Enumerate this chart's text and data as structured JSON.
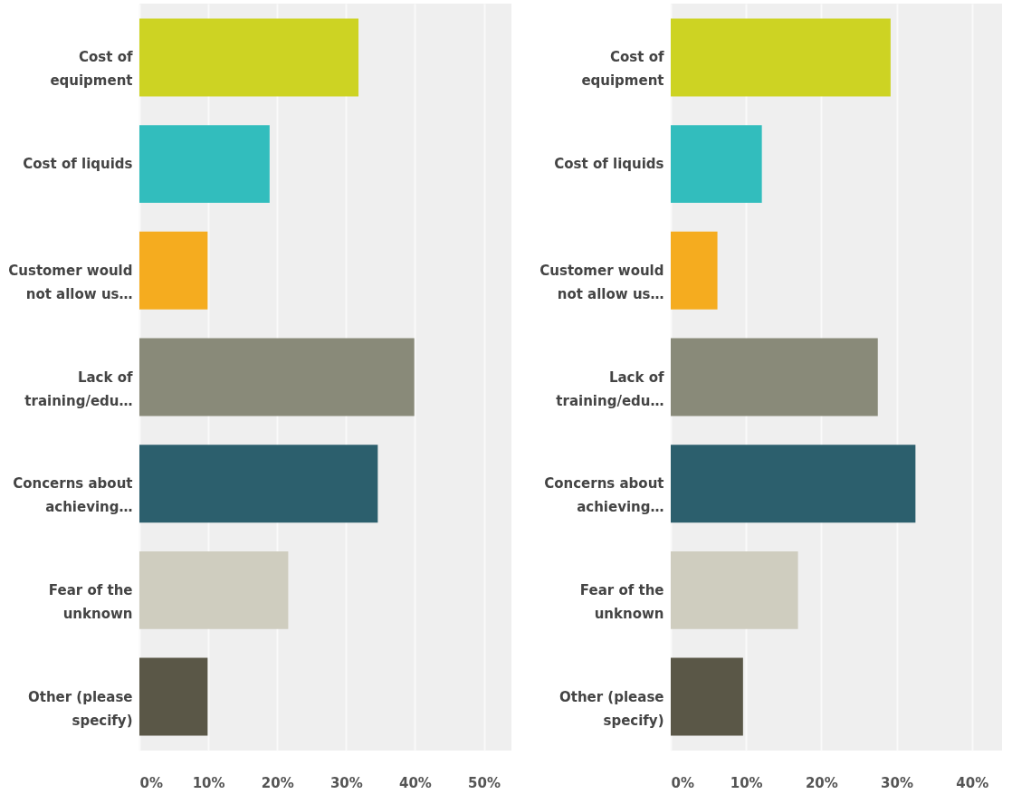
{
  "chart_data": [
    {
      "type": "bar",
      "orientation": "horizontal",
      "categories": [
        "Cost of equipment",
        "Cost of liquids",
        "Customer would not allow us…",
        "Lack of training/edu…",
        "Concerns about achieving…",
        "Fear of the unknown",
        "Other (please specify)"
      ],
      "values": [
        31.8,
        18.9,
        9.9,
        39.9,
        34.6,
        21.6,
        9.9
      ],
      "colors": [
        "#cdd323",
        "#32bdbd",
        "#f5ac1f",
        "#898a79",
        "#2c5f6d",
        "#cfcdbf",
        "#5a5747"
      ],
      "xlim": [
        0,
        54
      ],
      "xticks": [
        {
          "value": 0,
          "label": "0%"
        },
        {
          "value": 10,
          "label": "10%"
        },
        {
          "value": 20,
          "label": "20%"
        },
        {
          "value": 30,
          "label": "30%"
        },
        {
          "value": 40,
          "label": "40%"
        },
        {
          "value": 50,
          "label": "50%"
        }
      ],
      "grid": "x"
    },
    {
      "type": "bar",
      "orientation": "horizontal",
      "categories": [
        "Cost of equipment",
        "Cost of liquids",
        "Customer would not allow us…",
        "Lack of training/edu…",
        "Concerns about achieving…",
        "Fear of the unknown",
        "Other (please specify)"
      ],
      "values": [
        29.2,
        12.1,
        6.2,
        27.5,
        32.5,
        16.9,
        9.6
      ],
      "colors": [
        "#cdd323",
        "#32bdbd",
        "#f5ac1f",
        "#898a79",
        "#2c5f6d",
        "#cfcdbf",
        "#5a5747"
      ],
      "xlim": [
        0,
        44
      ],
      "xticks": [
        {
          "value": 0,
          "label": "0%"
        },
        {
          "value": 10,
          "label": "10%"
        },
        {
          "value": 20,
          "label": "20%"
        },
        {
          "value": 30,
          "label": "30%"
        },
        {
          "value": 40,
          "label": "40%"
        }
      ],
      "grid": "x"
    }
  ]
}
